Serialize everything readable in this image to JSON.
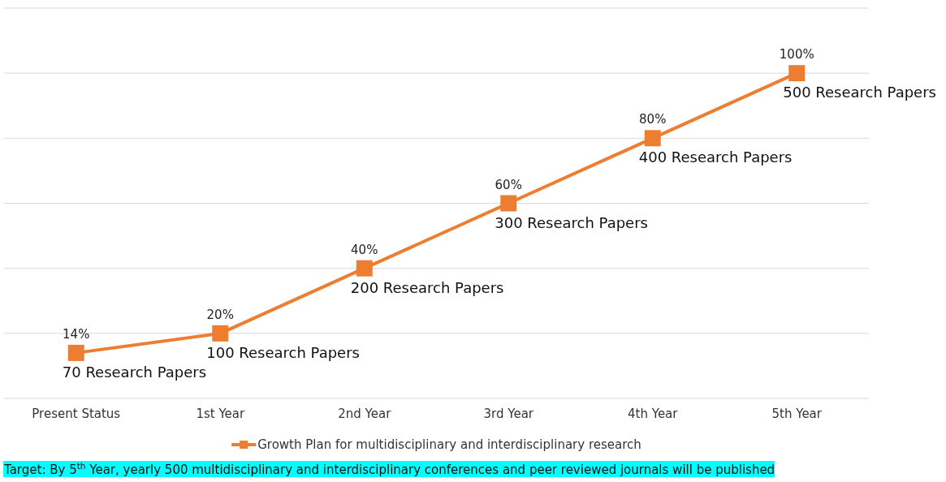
{
  "chart_data": {
    "type": "line",
    "categories": [
      "Present Status",
      "1st Year",
      "2nd Year",
      "3rd Year",
      "4th Year",
      "5th Year"
    ],
    "series": [
      {
        "name": "Growth Plan for multidisciplinary and interdisciplinary research",
        "color": "#ed7d31",
        "values": [
          14,
          20,
          40,
          60,
          80,
          100
        ],
        "value_labels": [
          "14%",
          "20%",
          "40%",
          "60%",
          "80%",
          "100%"
        ]
      }
    ],
    "ylim": [
      0,
      120
    ],
    "yticks": [
      {
        "value": 0,
        "label": null
      },
      {
        "value": 20,
        "label": null
      },
      {
        "value": 40,
        "label": null
      },
      {
        "value": 60,
        "label": null
      },
      {
        "value": 80,
        "label": null
      },
      {
        "value": 100,
        "label": null
      },
      {
        "value": 120,
        "label": null
      }
    ],
    "tick_labels": "x",
    "grid": "y",
    "legend": "bottom",
    "marker": "square",
    "line_style": "solid",
    "annotations": [
      {
        "text": "70 Research Papers",
        "x": "Present Status",
        "y": 14
      },
      {
        "text": "100 Research Papers",
        "x": "1st Year",
        "y": 20
      },
      {
        "text": "200 Research Papers",
        "x": "2nd Year",
        "y": 40
      },
      {
        "text": "300 Research Papers",
        "x": "3rd Year",
        "y": 60
      },
      {
        "text": "400 Research Papers",
        "x": "4th Year",
        "y": 80
      },
      {
        "text": "500 Research Papers",
        "x": "5th Year",
        "y": 100
      },
      "Target: By 5$^{th}$ Year, yearly 500 multidisciplinary and interdisciplinary conferences and peer reviewed journals will be published"
    ]
  }
}
